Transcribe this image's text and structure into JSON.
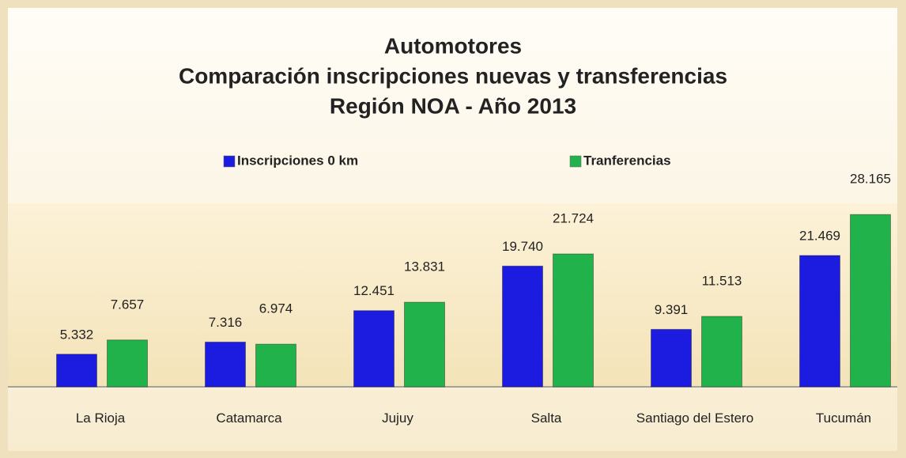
{
  "chart_data": {
    "type": "bar",
    "title": [
      "Automotores",
      "Comparación inscripciones nuevas y transferencias",
      "Región NOA - Año 2013"
    ],
    "categories": [
      "La Rioja",
      "Catamarca",
      "Jujuy",
      "Salta",
      "Santiago del Estero",
      "Tucumán"
    ],
    "series": [
      {
        "name": "Inscripciones 0 km",
        "color": "#1c1ce0",
        "values": [
          5332,
          7316,
          12451,
          19740,
          9391,
          21469
        ],
        "value_labels": [
          "5.332",
          "7.316",
          "12.451",
          "19.740",
          "9.391",
          "21.469"
        ]
      },
      {
        "name": "Tranferencias",
        "color": "#22b24c",
        "values": [
          7657,
          6974,
          13831,
          21724,
          11513,
          28165
        ],
        "value_labels": [
          "7.657",
          "6.974",
          "13.831",
          "21.724",
          "11.513",
          "28.165"
        ]
      }
    ],
    "ylim": [
      0,
      30000
    ],
    "legend": "top"
  }
}
